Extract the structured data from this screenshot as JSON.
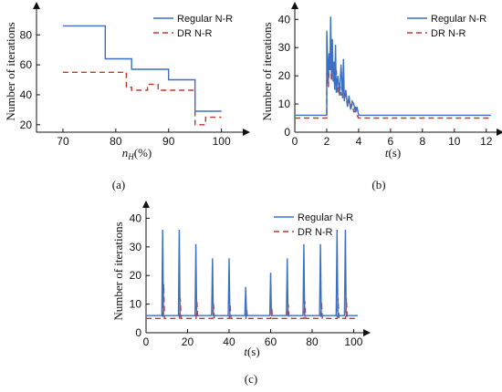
{
  "colors": {
    "regular": "#3a6fc4",
    "dr": "#c0392b"
  },
  "chart_data": [
    {
      "panel": "(a)",
      "type": "line",
      "step": true,
      "xlabel": "n_H(%)",
      "xlabel_main": "n",
      "xlabel_sub": "H",
      "xlabel_rest": "(%)",
      "ylabel": "Number of iterations",
      "xlim": [
        65,
        103
      ],
      "ylim": [
        15,
        96
      ],
      "xticks": [
        70,
        80,
        90,
        100
      ],
      "yticks": [
        20,
        40,
        60,
        80
      ],
      "legend": "top-right",
      "series": [
        {
          "name": "Regular N-R",
          "style": "solid",
          "color": "#3a6fc4",
          "x": [
            70,
            78,
            78,
            83,
            83,
            90,
            90,
            95,
            95,
            100
          ],
          "y": [
            86,
            86,
            64,
            64,
            57,
            57,
            50,
            50,
            29,
            29
          ]
        },
        {
          "name": "DR N-R",
          "style": "dashed",
          "color": "#c0392b",
          "x": [
            70,
            82,
            82,
            83,
            83,
            86,
            86,
            88,
            88,
            95,
            95,
            97,
            97,
            100
          ],
          "y": [
            55,
            55,
            45,
            45,
            43,
            43,
            47,
            47,
            43,
            43,
            20,
            20,
            25,
            25
          ]
        }
      ]
    },
    {
      "panel": "(b)",
      "type": "line",
      "xlabel": "t(s)",
      "xlabel_main": "t",
      "xlabel_rest": "(s)",
      "ylabel": "Number of iterations",
      "xlim": [
        0,
        12.3
      ],
      "ylim": [
        0,
        43
      ],
      "xticks": [
        0,
        2,
        4,
        6,
        8,
        10,
        12
      ],
      "yticks": [
        0,
        10,
        20,
        30,
        40
      ],
      "legend": "top-right",
      "series": [
        {
          "name": "Regular N-R",
          "style": "solid",
          "color": "#3a6fc4",
          "x": [
            0,
            2.0,
            2.0,
            2.1,
            2.15,
            2.2,
            2.25,
            2.3,
            2.35,
            2.4,
            2.45,
            2.5,
            2.55,
            2.6,
            2.7,
            2.8,
            2.9,
            3.0,
            3.05,
            3.1,
            3.2,
            3.3,
            3.4,
            3.5,
            3.6,
            3.7,
            3.8,
            3.9,
            4.0,
            4.05,
            12.3
          ],
          "y": [
            6,
            6,
            36,
            18,
            28,
            22,
            41,
            20,
            33,
            18,
            25,
            15,
            31,
            14,
            20,
            13,
            24,
            12,
            26,
            11,
            15,
            9,
            13,
            8,
            11,
            10,
            7,
            9,
            6,
            6,
            6
          ]
        },
        {
          "name": "DR N-R",
          "style": "dashed",
          "color": "#c0392b",
          "x": [
            0,
            2.0,
            2.0,
            2.1,
            2.2,
            2.3,
            2.35,
            2.4,
            2.5,
            2.6,
            2.7,
            2.8,
            2.9,
            3.0,
            3.1,
            3.2,
            3.3,
            3.4,
            3.5,
            3.6,
            3.7,
            3.8,
            3.9,
            4.0,
            4.1,
            12.3
          ],
          "y": [
            5,
            5,
            21,
            16,
            28,
            18,
            30,
            20,
            17,
            22,
            14,
            18,
            13,
            19,
            12,
            14,
            9,
            12,
            8,
            10,
            7,
            9,
            6,
            5,
            5,
            5
          ]
        }
      ]
    },
    {
      "panel": "(c)",
      "type": "line",
      "xlabel": "t(s)",
      "xlabel_main": "t",
      "xlabel_rest": "(s)",
      "ylabel": "Number of iterations",
      "xlim": [
        0,
        102
      ],
      "ylim": [
        0,
        43
      ],
      "xticks": [
        0,
        20,
        40,
        60,
        80,
        100
      ],
      "yticks": [
        0,
        10,
        20,
        30,
        40
      ],
      "legend": "top-right",
      "baselines": {
        "regular": 6,
        "dr": 5
      },
      "spikes": {
        "regular": [
          {
            "t": 8,
            "y": 36
          },
          {
            "t": 16,
            "y": 36
          },
          {
            "t": 24,
            "y": 31
          },
          {
            "t": 32,
            "y": 26
          },
          {
            "t": 40,
            "y": 26
          },
          {
            "t": 48,
            "y": 16
          },
          {
            "t": 60,
            "y": 21
          },
          {
            "t": 68,
            "y": 26
          },
          {
            "t": 76,
            "y": 31
          },
          {
            "t": 84,
            "y": 31
          },
          {
            "t": 92,
            "y": 36
          },
          {
            "t": 96,
            "y": 36
          }
        ],
        "dr": [
          {
            "t": 8.5,
            "y": 17
          },
          {
            "t": 16.5,
            "y": 12
          },
          {
            "t": 24.5,
            "y": 11
          },
          {
            "t": 32.5,
            "y": 10
          },
          {
            "t": 40.5,
            "y": 10
          },
          {
            "t": 48.5,
            "y": 8
          },
          {
            "t": 60.5,
            "y": 9
          },
          {
            "t": 68.5,
            "y": 10
          },
          {
            "t": 76.5,
            "y": 11
          },
          {
            "t": 84.5,
            "y": 11
          },
          {
            "t": 92.5,
            "y": 12
          },
          {
            "t": 96.5,
            "y": 12
          }
        ]
      },
      "series": [
        {
          "name": "Regular N-R",
          "style": "solid",
          "color": "#3a6fc4"
        },
        {
          "name": "DR N-R",
          "style": "dashed",
          "color": "#c0392b"
        }
      ]
    }
  ]
}
